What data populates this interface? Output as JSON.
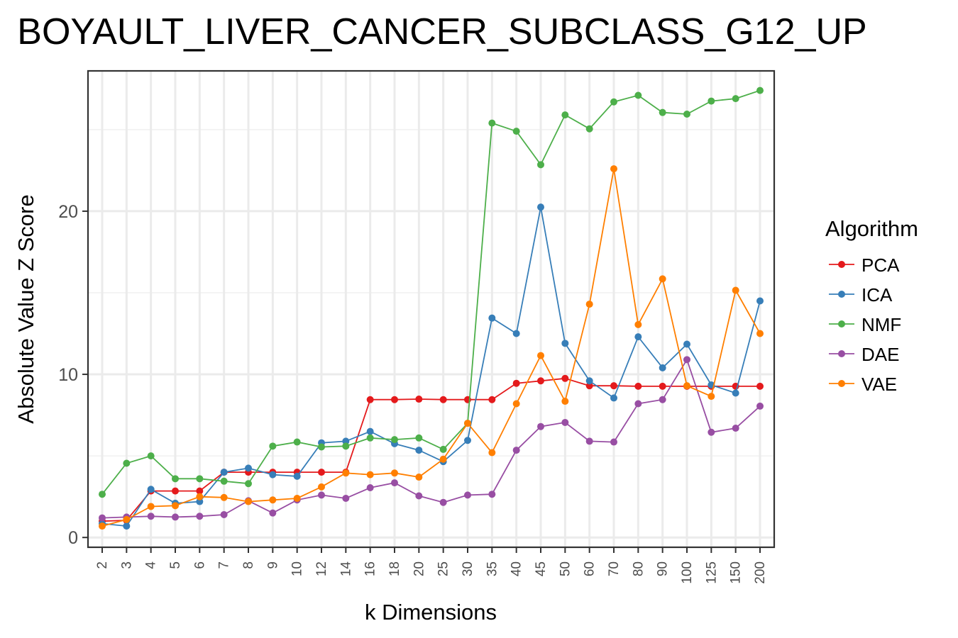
{
  "chart_data": {
    "type": "line",
    "title": "BOYAULT_LIVER_CANCER_SUBCLASS_G12_UP",
    "xlabel": "k Dimensions",
    "ylabel": "Absolute Value Z Score",
    "categories": [
      "2",
      "3",
      "4",
      "5",
      "6",
      "7",
      "8",
      "9",
      "10",
      "12",
      "14",
      "16",
      "18",
      "20",
      "25",
      "30",
      "35",
      "40",
      "45",
      "50",
      "60",
      "70",
      "80",
      "90",
      "100",
      "125",
      "150",
      "200"
    ],
    "ylim": [
      -0.6,
      28.6
    ],
    "yticks": [
      0,
      10,
      20
    ],
    "grid": true,
    "legend": {
      "title": "Algorithm",
      "position": "right"
    },
    "series": [
      {
        "name": "PCA",
        "color": "#e41a1c",
        "values": [
          1.0,
          1.05,
          2.85,
          2.85,
          2.85,
          4.0,
          4.0,
          4.0,
          4.0,
          4.0,
          4.0,
          8.45,
          8.45,
          8.48,
          8.45,
          8.45,
          8.45,
          9.45,
          9.6,
          9.75,
          9.3,
          9.3,
          9.27,
          9.27,
          9.27,
          9.27,
          9.27,
          9.27
        ]
      },
      {
        "name": "ICA",
        "color": "#377eb8",
        "values": [
          0.85,
          0.7,
          2.95,
          2.1,
          2.2,
          4.0,
          4.25,
          3.85,
          3.75,
          5.8,
          5.9,
          6.5,
          5.75,
          5.35,
          4.65,
          5.95,
          13.45,
          12.5,
          20.25,
          11.9,
          9.6,
          8.55,
          12.3,
          10.4,
          11.85,
          9.35,
          8.85,
          14.5
        ]
      },
      {
        "name": "NMF",
        "color": "#4daf4a",
        "values": [
          2.65,
          4.55,
          5.0,
          3.6,
          3.6,
          3.45,
          3.3,
          5.6,
          5.85,
          5.55,
          5.6,
          6.1,
          6.0,
          6.1,
          5.4,
          7.0,
          25.4,
          24.9,
          22.85,
          25.9,
          25.05,
          26.7,
          27.1,
          26.05,
          25.95,
          26.75,
          26.9,
          27.4
        ]
      },
      {
        "name": "DAE",
        "color": "#984ea3",
        "values": [
          1.2,
          1.25,
          1.3,
          1.25,
          1.3,
          1.4,
          2.25,
          1.5,
          2.3,
          2.6,
          2.4,
          3.05,
          3.35,
          2.55,
          2.15,
          2.6,
          2.65,
          5.35,
          6.8,
          7.05,
          5.9,
          5.85,
          8.2,
          8.45,
          10.9,
          6.45,
          6.7,
          8.05
        ]
      },
      {
        "name": "VAE",
        "color": "#ff7f00",
        "values": [
          0.7,
          1.1,
          1.9,
          1.95,
          2.5,
          2.45,
          2.2,
          2.3,
          2.4,
          3.1,
          3.95,
          3.85,
          3.95,
          3.7,
          4.8,
          7.0,
          5.2,
          8.2,
          11.15,
          8.35,
          14.3,
          22.6,
          13.05,
          15.85,
          9.3,
          8.65,
          15.15,
          12.5
        ]
      }
    ]
  }
}
